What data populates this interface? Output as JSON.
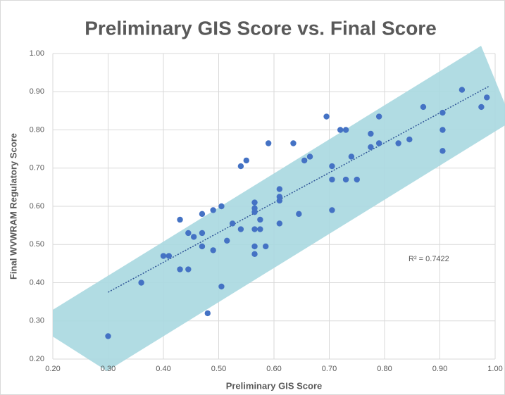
{
  "chart_data": {
    "type": "scatter",
    "title": "Preliminary GIS Score vs. Final Score",
    "x_label": "Preliminary GIS Score",
    "y_label": "Final WVWRAM Regulatory Score",
    "annotation": "R² = 0.7422",
    "color": "#4472c4",
    "grid": true,
    "xlim": [
      0.2,
      1.0
    ],
    "ylim": [
      0.2,
      1.0
    ],
    "xticks": [
      {
        "value": 0.2,
        "label": "0.20"
      },
      {
        "value": 0.3,
        "label": "0.30"
      },
      {
        "value": 0.4,
        "label": "0.40"
      },
      {
        "value": 0.5,
        "label": "0.50"
      },
      {
        "value": 0.6,
        "label": "0.60"
      },
      {
        "value": 0.7,
        "label": "0.70"
      },
      {
        "value": 0.8,
        "label": "0.80"
      },
      {
        "value": 0.9,
        "label": "0.90"
      },
      {
        "value": 1.0,
        "label": "1.00"
      }
    ],
    "yticks": [
      {
        "value": 0.2,
        "label": "0.20"
      },
      {
        "value": 0.3,
        "label": "0.30"
      },
      {
        "value": 0.4,
        "label": "0.40"
      },
      {
        "value": 0.5,
        "label": "0.50"
      },
      {
        "value": 0.6,
        "label": "0.60"
      },
      {
        "value": 0.7,
        "label": "0.70"
      },
      {
        "value": 0.8,
        "label": "0.80"
      },
      {
        "value": 0.9,
        "label": "0.90"
      },
      {
        "value": 1.0,
        "label": "1.00"
      }
    ],
    "x": [
      0.3,
      0.36,
      0.4,
      0.41,
      0.43,
      0.43,
      0.445,
      0.445,
      0.455,
      0.47,
      0.47,
      0.47,
      0.48,
      0.49,
      0.49,
      0.505,
      0.505,
      0.515,
      0.525,
      0.54,
      0.54,
      0.55,
      0.565,
      0.565,
      0.565,
      0.565,
      0.565,
      0.565,
      0.575,
      0.575,
      0.585,
      0.59,
      0.61,
      0.61,
      0.61,
      0.61,
      0.635,
      0.645,
      0.655,
      0.665,
      0.695,
      0.705,
      0.705,
      0.705,
      0.72,
      0.73,
      0.73,
      0.74,
      0.75,
      0.775,
      0.775,
      0.79,
      0.79,
      0.825,
      0.845,
      0.87,
      0.905,
      0.905,
      0.905,
      0.94,
      0.975,
      0.985
    ],
    "values": [
      0.26,
      0.4,
      0.47,
      0.47,
      0.565,
      0.435,
      0.435,
      0.53,
      0.52,
      0.58,
      0.53,
      0.495,
      0.32,
      0.59,
      0.485,
      0.6,
      0.39,
      0.51,
      0.555,
      0.54,
      0.705,
      0.72,
      0.61,
      0.595,
      0.585,
      0.54,
      0.495,
      0.475,
      0.565,
      0.54,
      0.495,
      0.765,
      0.645,
      0.625,
      0.615,
      0.555,
      0.765,
      0.58,
      0.72,
      0.73,
      0.835,
      0.705,
      0.67,
      0.59,
      0.8,
      0.8,
      0.67,
      0.73,
      0.67,
      0.79,
      0.755,
      0.765,
      0.835,
      0.765,
      0.775,
      0.86,
      0.845,
      0.8,
      0.745,
      0.905,
      0.86,
      0.885
    ],
    "trendline": {
      "x": [
        0.3,
        0.99
      ],
      "y": [
        0.375,
        0.915
      ]
    }
  }
}
